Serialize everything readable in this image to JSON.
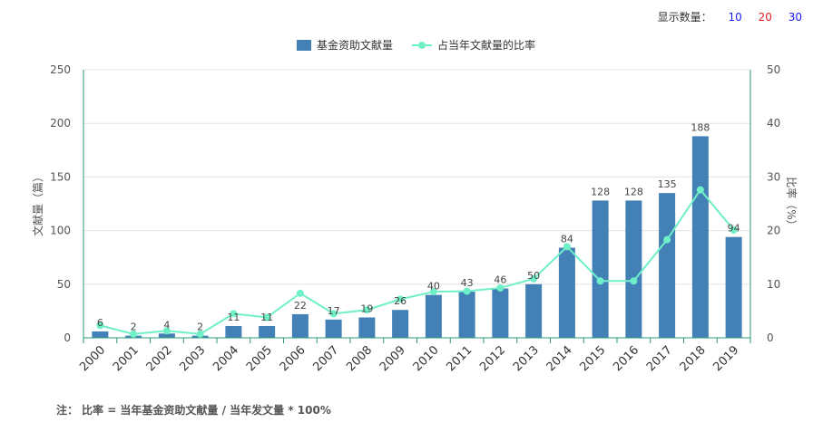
{
  "display_controls": {
    "label": "显示数量：",
    "options": [
      {
        "value": "10",
        "color": "#1a1aff"
      },
      {
        "value": "20",
        "color": "#e02020"
      },
      {
        "value": "30",
        "color": "#1a1aff"
      }
    ]
  },
  "footnote": {
    "prefix": "注：",
    "text": "比率 = 当年基金资助文献量 / 当年发文量 * 100%"
  },
  "chart_data": {
    "type": "bar+line",
    "categories": [
      "2000",
      "2001",
      "2002",
      "2003",
      "2004",
      "2005",
      "2006",
      "2007",
      "2008",
      "2009",
      "2010",
      "2011",
      "2012",
      "2013",
      "2014",
      "2015",
      "2016",
      "2017",
      "2018",
      "2019"
    ],
    "series": [
      {
        "name": "基金资助文献量",
        "type": "bar",
        "axis": "left",
        "color": "#4280b5",
        "values": [
          6,
          2,
          4,
          2,
          11,
          11,
          22,
          17,
          19,
          26,
          40,
          43,
          46,
          50,
          84,
          128,
          128,
          135,
          188,
          94
        ]
      },
      {
        "name": "占当年文献量的比率",
        "type": "line",
        "axis": "right",
        "color": "#6ff0c8",
        "values": [
          2.3,
          0.7,
          1.3,
          0.7,
          4.5,
          3.8,
          8.3,
          4.5,
          5.2,
          7.2,
          8.6,
          8.7,
          9.3,
          11,
          17,
          10.6,
          10.6,
          18.3,
          27.6,
          20.1
        ]
      }
    ],
    "ylabel_left": "文献量（篇）",
    "ylabel_right": "比率（%）",
    "ylim_left": [
      0,
      250
    ],
    "yticks_left": [
      0,
      50,
      100,
      150,
      200,
      250
    ],
    "ylim_right": [
      0,
      50
    ],
    "yticks_right": [
      0,
      10,
      20,
      30,
      40,
      50
    ],
    "grid": true,
    "legend_position": "top-center"
  }
}
